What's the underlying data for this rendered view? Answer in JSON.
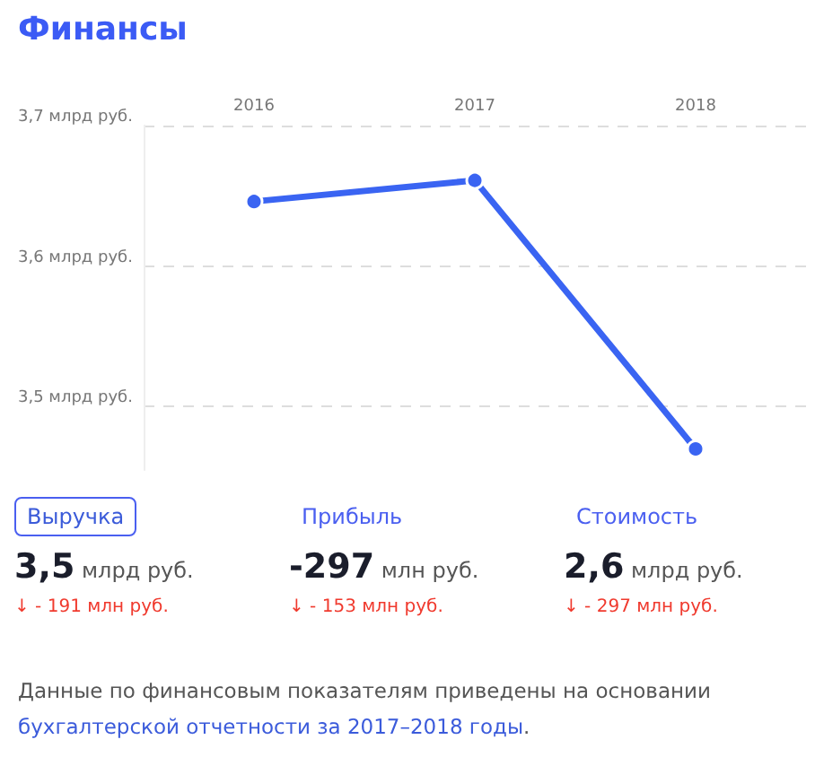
{
  "chart_data": {
    "type": "line",
    "title": "Финансы",
    "categories": [
      "2016",
      "2017",
      "2018"
    ],
    "series": [
      {
        "color": "#3a64f2",
        "values": [
          3.646,
          3.661,
          3.47
        ]
      }
    ],
    "ylim": [
      3.455,
      3.7
    ],
    "yticks": [
      {
        "value": 3.5,
        "label": "3,5 млрд руб."
      },
      {
        "value": 3.6,
        "label": "3,6 млрд руб."
      },
      {
        "value": 3.7,
        "label": "3,7 млрд руб."
      }
    ],
    "grid": "y",
    "marker": "circle",
    "line_style": "solid",
    "annotations": [
      "Выручка",
      "3,5 млрд руб.",
      "↓ - 191 млн руб.",
      "Прибыль",
      "-297 млн руб.",
      "↓ - 153 млн руб.",
      "Стоимость",
      "2,6 млрд руб.",
      "↓ - 297 млн руб.",
      "Данные по финансовым показателям приведены на основании ",
      "бухгалтерской отчетности за 2017–2018 годы",
      "."
    ]
  }
}
